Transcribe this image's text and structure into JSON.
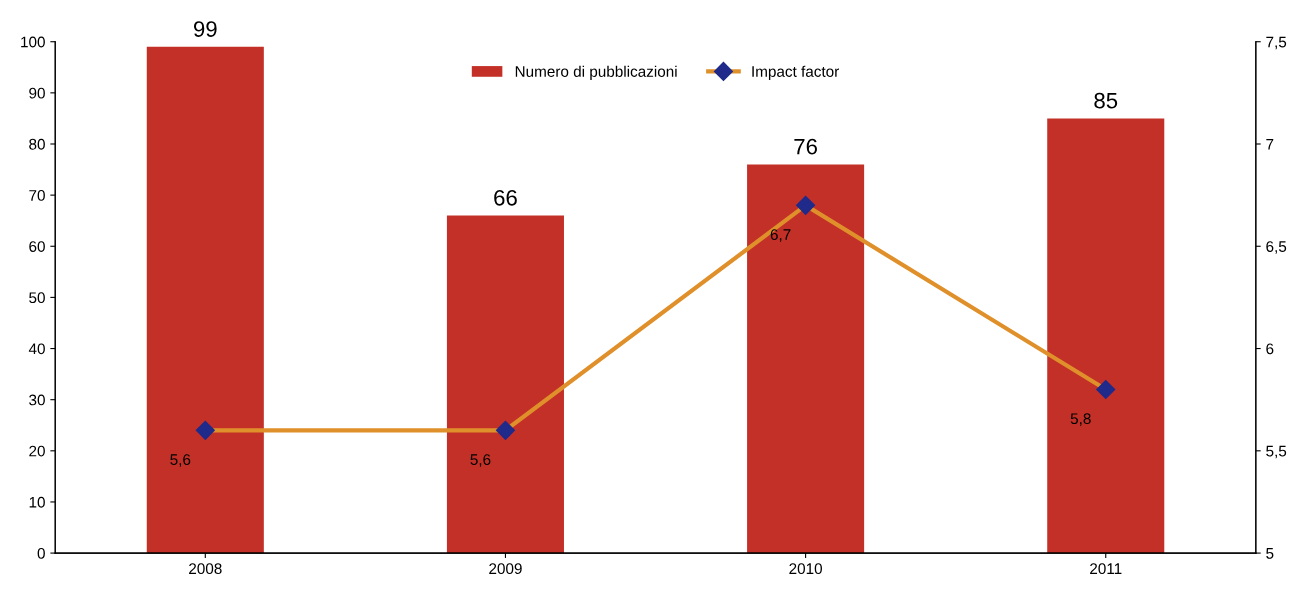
{
  "chart_data": {
    "type": "bar",
    "categories": [
      "2008",
      "2009",
      "2010",
      "2011"
    ],
    "series": [
      {
        "name": "Numero di pubblicazioni",
        "color": "#c33027",
        "values": [
          99,
          66,
          76,
          85
        ],
        "value_labels": [
          "99",
          "66",
          "76",
          "85"
        ]
      },
      {
        "name": "Impact factor",
        "type": "line",
        "axis": "y2",
        "color": "#e0902a",
        "marker": "diamond",
        "values": [
          5.6,
          5.6,
          6.7,
          5.8
        ],
        "value_labels": [
          "5,6",
          "5,6",
          "6,7",
          "5,8"
        ]
      }
    ],
    "ylim": [
      0,
      100
    ],
    "yticks": [
      0,
      10,
      20,
      30,
      40,
      50,
      60,
      70,
      80,
      90,
      100
    ],
    "y2lim": [
      5,
      7.5
    ],
    "y2ticks": [
      5,
      {
        "value": 5.5,
        "label": "5,5"
      },
      6,
      {
        "value": 6.5,
        "label": "6,5"
      },
      7,
      {
        "value": 7.5,
        "label": "7,5"
      }
    ],
    "grid": false,
    "legend": "top"
  }
}
